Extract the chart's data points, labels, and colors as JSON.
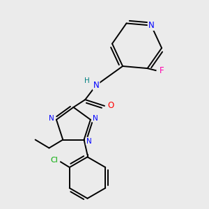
{
  "background_color": "#ebebeb",
  "atom_colors": {
    "N": "#0000ff",
    "O": "#ff0000",
    "F": "#ff00aa",
    "Cl": "#00aa00",
    "C": "#000000",
    "H": "#008080"
  },
  "bond_color": "#000000",
  "bond_width": 1.4,
  "figsize": [
    3.0,
    3.0
  ],
  "dpi": 100
}
